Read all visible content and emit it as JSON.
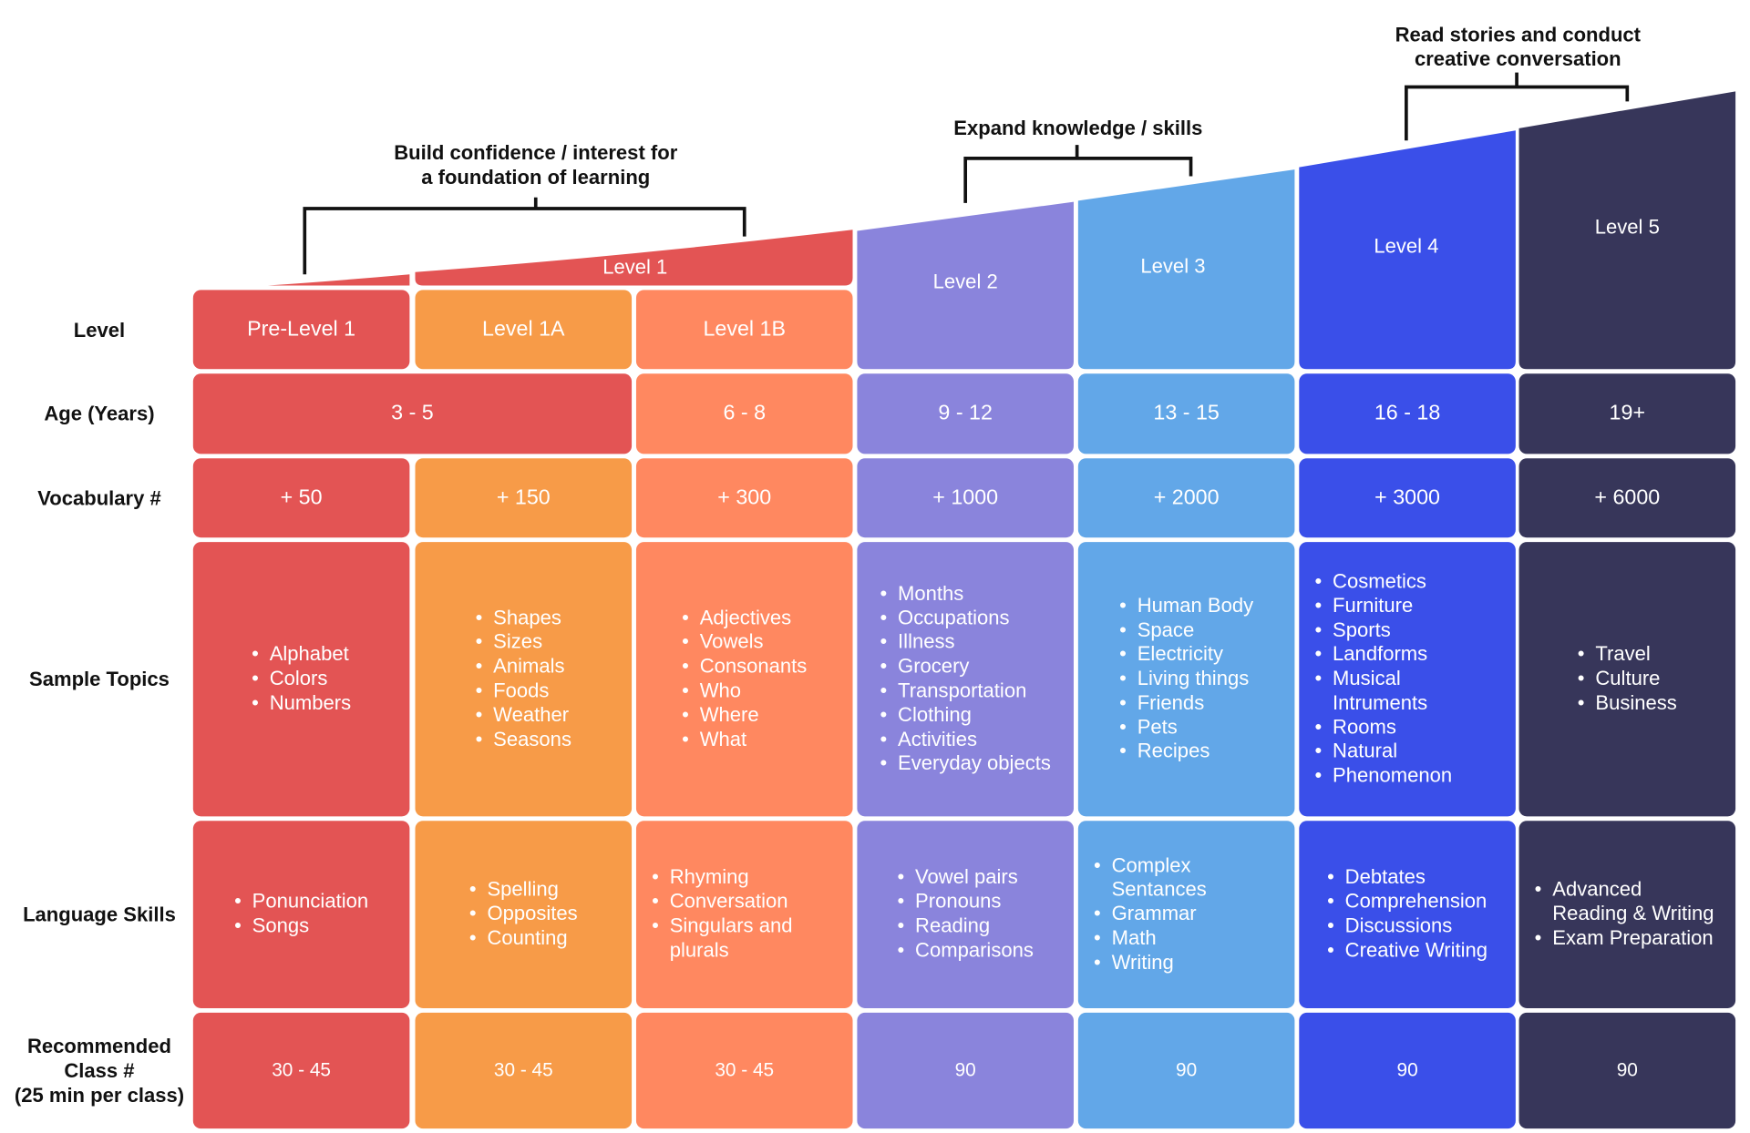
{
  "brackets": [
    {
      "lines": [
        "Build confidence / interest for",
        "a foundation of learning"
      ]
    },
    {
      "lines": [
        "Expand knowledge / skills"
      ]
    },
    {
      "lines": [
        "Read stories and conduct",
        "creative conversation"
      ]
    }
  ],
  "top_levels": {
    "level1": "Level 1",
    "level2": "Level 2",
    "level3": "Level 3",
    "level4": "Level 4",
    "level5": "Level 5"
  },
  "row_labels": {
    "level": "Level",
    "age": "Age (Years)",
    "vocab": "Vocabulary #",
    "topics": "Sample Topics",
    "skills": "Language Skills",
    "classes": [
      "Recommended",
      "Class #",
      "(25 min per class)"
    ]
  },
  "colors": [
    "#E35454",
    "#F79B48",
    "#FF8860",
    "#8A84DC",
    "#62A7E8",
    "#3A4FE9",
    "#37365A"
  ],
  "columns": [
    {
      "level": "Pre-Level 1",
      "age": "3 - 5",
      "vocab": "+ 50",
      "topics": [
        "Alphabet",
        "Colors",
        "Numbers"
      ],
      "skills": [
        "Ponunciation",
        "Songs"
      ],
      "classes": "30 - 45"
    },
    {
      "level": "Level 1A",
      "age": "",
      "vocab": "+ 150",
      "topics": [
        "Shapes",
        "Sizes",
        "Animals",
        "Foods",
        "Weather",
        "Seasons"
      ],
      "skills": [
        "Spelling",
        "Opposites",
        "Counting"
      ],
      "classes": "30 - 45"
    },
    {
      "level": "Level 1B",
      "age": "6 - 8",
      "vocab": "+ 300",
      "topics": [
        "Adjectives",
        "Vowels",
        "Consonants",
        "Who",
        "Where",
        "What"
      ],
      "skills": [
        "Rhyming",
        "Conversation",
        "Singulars and plurals"
      ],
      "classes": "30 - 45"
    },
    {
      "level": "",
      "age": "9 - 12",
      "vocab": "+ 1000",
      "topics": [
        "Months",
        "Occupations",
        "Illness",
        "Grocery",
        "Transportation",
        "Clothing",
        "Activities",
        "Everyday objects"
      ],
      "skills": [
        "Vowel pairs",
        "Pronouns",
        "Reading",
        "Comparisons"
      ],
      "classes": "90"
    },
    {
      "level": "",
      "age": "13 - 15",
      "vocab": "+ 2000",
      "topics": [
        "Human Body",
        "Space",
        "Electricity",
        "Living things",
        "Friends",
        "Pets",
        "Recipes"
      ],
      "skills": [
        "Complex Sentances",
        "Grammar",
        "Math",
        "Writing"
      ],
      "classes": "90"
    },
    {
      "level": "",
      "age": "16 - 18",
      "vocab": "+ 3000",
      "topics": [
        "Cosmetics",
        "Furniture",
        "Sports",
        "Landforms",
        "Musical Intruments",
        "Rooms",
        "Natural",
        "Phenomenon"
      ],
      "skills": [
        "Debtates",
        "Comprehension",
        "Discussions",
        "Creative Writing"
      ],
      "classes": "90"
    },
    {
      "level": "",
      "age": "19+",
      "vocab": "+ 6000",
      "topics": [
        "Travel",
        "Culture",
        "Business"
      ],
      "skills": [
        "Advanced Reading & Writing",
        "Exam Preparation"
      ],
      "classes": "90"
    }
  ]
}
